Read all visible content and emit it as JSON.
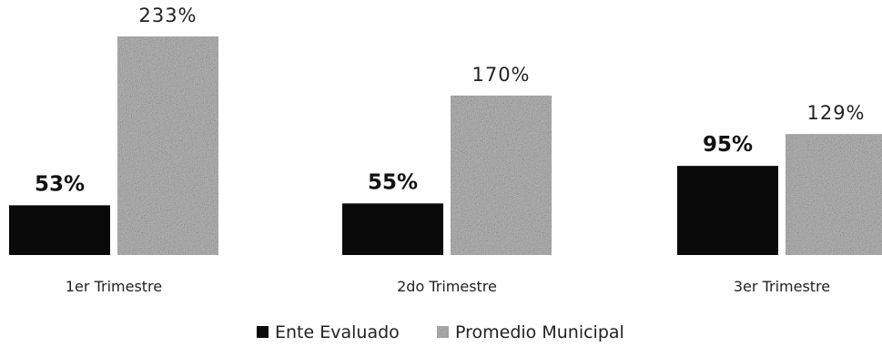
{
  "chart_data": {
    "type": "bar",
    "categories": [
      "1er Trimestre",
      "2do Trimestre",
      "3er Trimestre"
    ],
    "series": [
      {
        "name": "Ente Evaluado",
        "values": [
          53,
          55,
          95
        ],
        "labels": [
          "53%",
          "55%",
          "95%"
        ],
        "color": "#0a0a0a"
      },
      {
        "name": "Promedio Municipal",
        "values": [
          233,
          170,
          129
        ],
        "labels": [
          "233%",
          "170%",
          "129%"
        ],
        "color": "#a8a8a8"
      }
    ],
    "ylim": [
      0,
      233
    ],
    "grid": false,
    "legend": "bottom-center"
  }
}
